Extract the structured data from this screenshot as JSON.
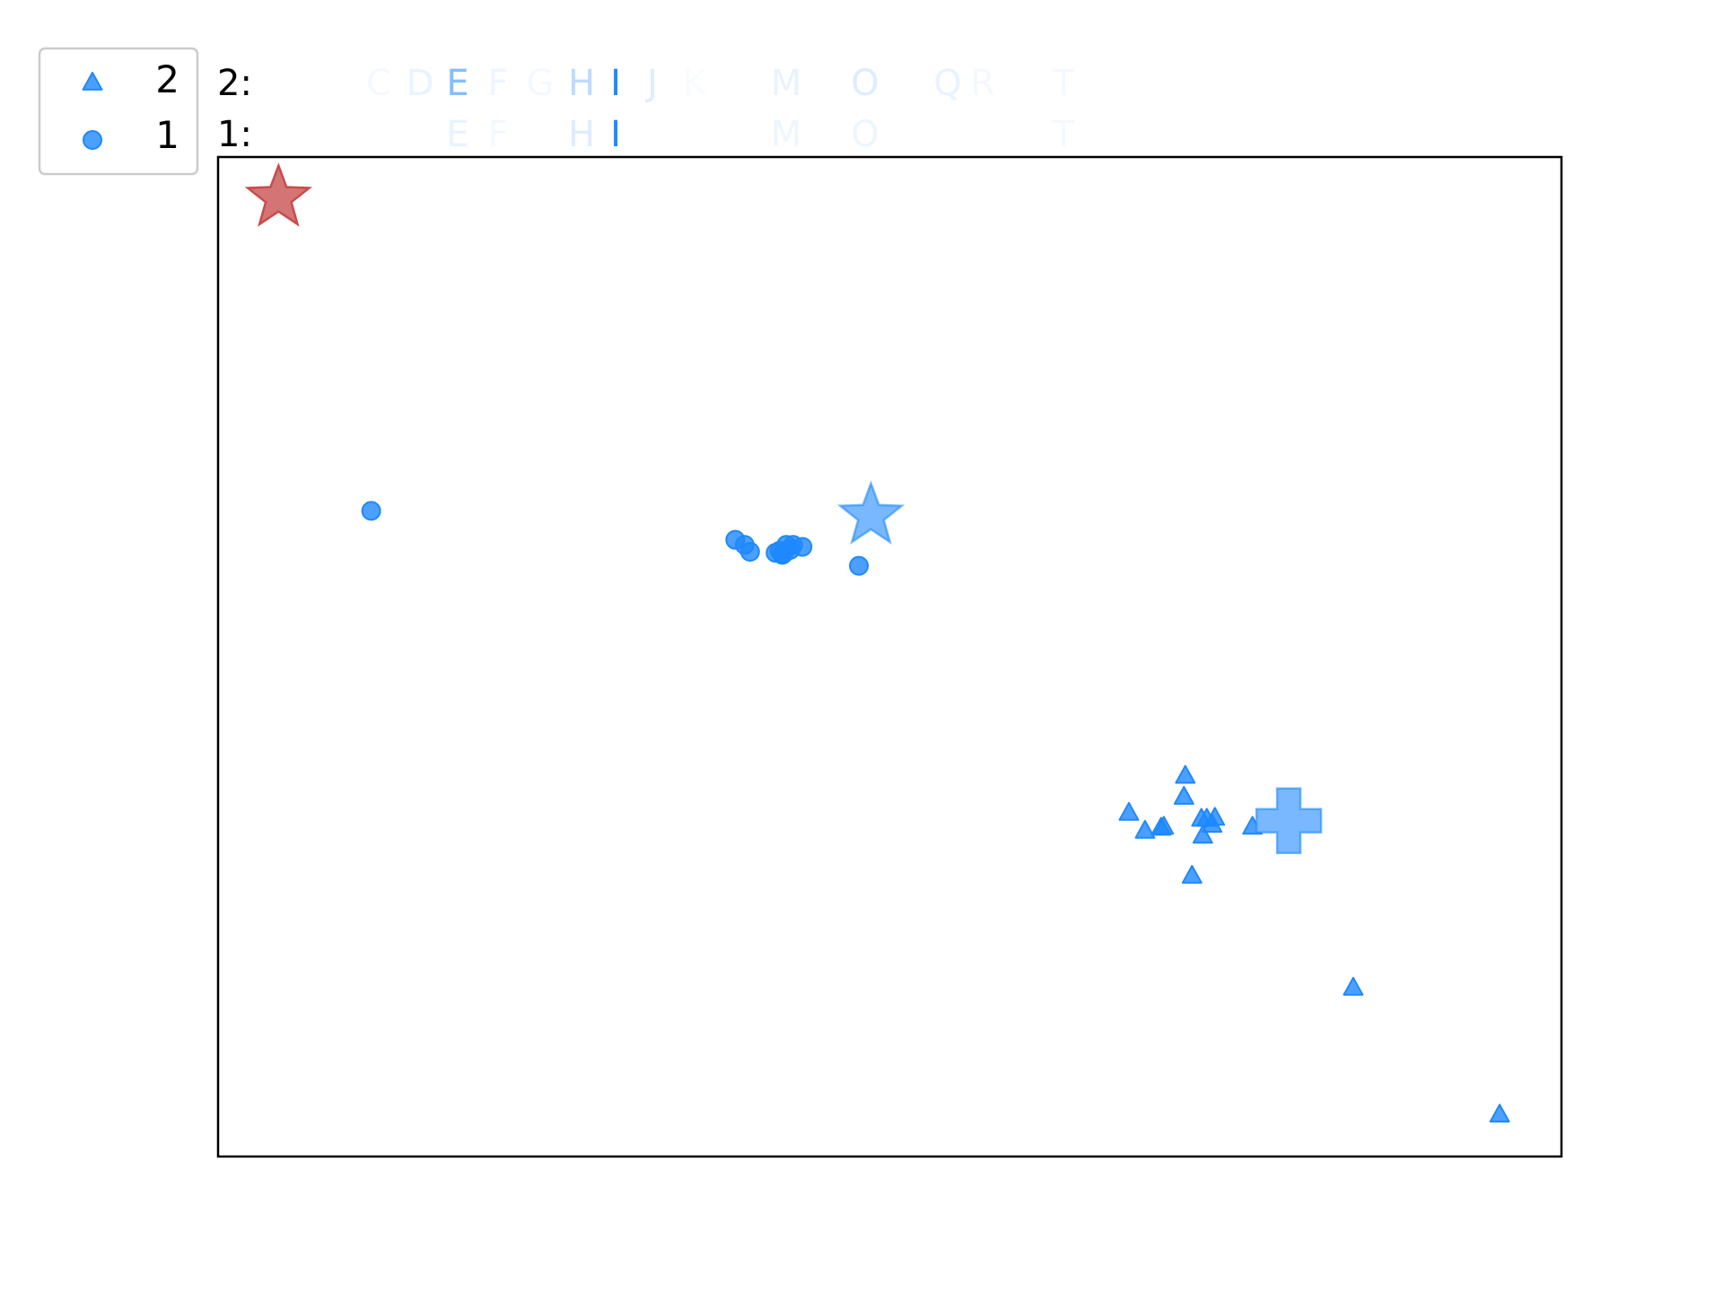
{
  "colors": {
    "series": "#1e88ff",
    "centroid": "#79b8ff",
    "outlier": "#cd5c5c",
    "outlier_edge": "#c84b4b"
  },
  "legend": [
    {
      "label": "2",
      "marker": "triangle"
    },
    {
      "label": "1",
      "marker": "circle"
    }
  ],
  "letter_rows": [
    {
      "label": "2:",
      "letters": [
        {
          "char": "C",
          "alpha": 0.05
        },
        {
          "char": "D",
          "alpha": 0.1
        },
        {
          "char": "E",
          "alpha": 0.55
        },
        {
          "char": "F",
          "alpha": 0.08
        },
        {
          "char": "G",
          "alpha": 0.05
        },
        {
          "char": "H",
          "alpha": 0.3
        },
        {
          "char": "I",
          "alpha": 1.0
        },
        {
          "char": "J",
          "alpha": 0.15
        },
        {
          "char": "K",
          "alpha": 0.03
        },
        {
          "char": "M",
          "alpha": 0.1
        },
        {
          "char": "O",
          "alpha": 0.15
        },
        {
          "char": "Q",
          "alpha": 0.1
        },
        {
          "char": "R",
          "alpha": 0.05
        },
        {
          "char": "T",
          "alpha": 0.05
        }
      ]
    },
    {
      "label": "1:",
      "letters": [
        {
          "char": "E",
          "alpha": 0.1
        },
        {
          "char": "F",
          "alpha": 0.05
        },
        {
          "char": "H",
          "alpha": 0.15
        },
        {
          "char": "I",
          "alpha": 1.0
        },
        {
          "char": "M",
          "alpha": 0.08
        },
        {
          "char": "O",
          "alpha": 0.08
        },
        {
          "char": "T",
          "alpha": 0.05
        }
      ]
    }
  ],
  "chart_data": {
    "type": "scatter",
    "xlim": [
      0,
      100
    ],
    "ylim": [
      0,
      100
    ],
    "grid": false,
    "axis_ticks": false,
    "legend_position": "outside-top-left",
    "series": [
      {
        "name": "1",
        "marker": "circle",
        "points": [
          [
            11.4,
            64.6
          ],
          [
            38.5,
            61.7
          ],
          [
            39.2,
            61.2
          ],
          [
            39.6,
            60.5
          ],
          [
            41.5,
            60.4
          ],
          [
            41.8,
            60.6
          ],
          [
            42.0,
            60.2
          ],
          [
            42.3,
            61.2
          ],
          [
            42.6,
            60.7
          ],
          [
            42.8,
            61.2
          ],
          [
            43.5,
            61.0
          ],
          [
            42.1,
            60.3
          ],
          [
            47.7,
            59.1
          ]
        ]
      },
      {
        "name": "2",
        "marker": "triangle",
        "points": [
          [
            72.0,
            38.1
          ],
          [
            71.9,
            36.0
          ],
          [
            67.8,
            34.4
          ],
          [
            69.0,
            32.6
          ],
          [
            70.2,
            32.9
          ],
          [
            70.4,
            33.0
          ],
          [
            73.2,
            33.8
          ],
          [
            73.6,
            33.8
          ],
          [
            74.2,
            33.9
          ],
          [
            73.3,
            32.1
          ],
          [
            74.0,
            33.2
          ],
          [
            77.0,
            33.0
          ],
          [
            72.5,
            28.1
          ],
          [
            84.5,
            16.9
          ],
          [
            95.4,
            4.2
          ]
        ]
      }
    ],
    "centroids": [
      {
        "series": "1",
        "marker": "star",
        "point": [
          48.6,
          64.1
        ]
      },
      {
        "series": "2",
        "marker": "plus",
        "point": [
          79.7,
          33.6
        ]
      }
    ],
    "outliers": [
      {
        "marker": "star",
        "point": [
          4.5,
          95.9
        ]
      }
    ]
  }
}
